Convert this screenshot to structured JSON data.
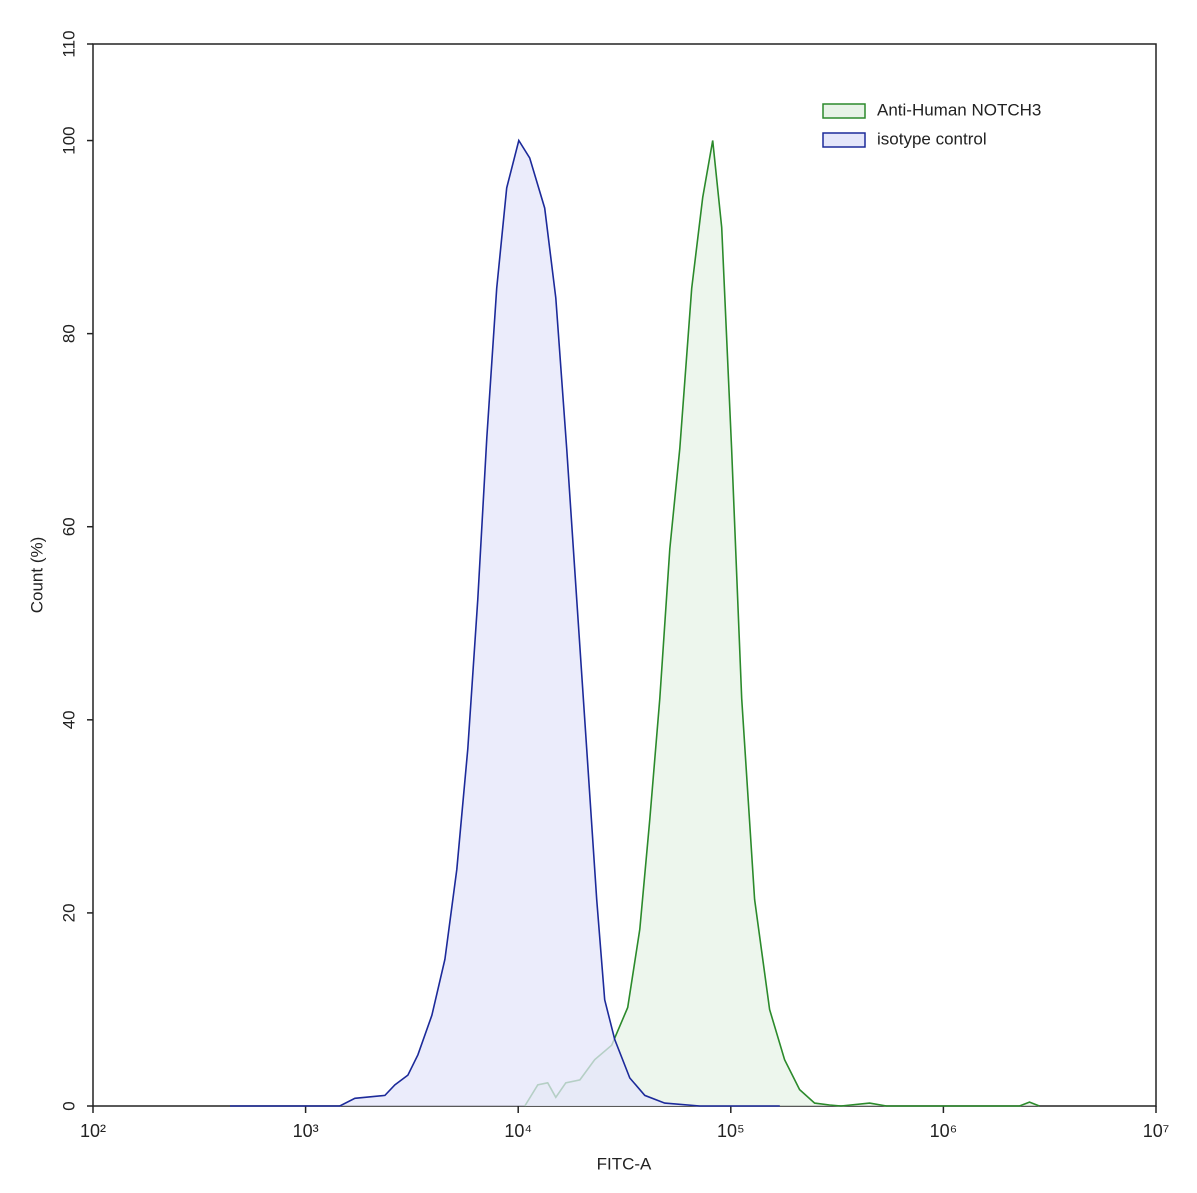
{
  "chart_data": {
    "type": "area",
    "x_label": "FITC-A",
    "y_label": "Count (%)",
    "xlim": [
      100,
      10000000
    ],
    "x_log": true,
    "xticks": [
      {
        "value": 100,
        "label": "10²"
      },
      {
        "value": 1000,
        "label": "10³"
      },
      {
        "value": 10000,
        "label": "10⁴"
      },
      {
        "value": 100000,
        "label": "10⁵"
      },
      {
        "value": 1000000,
        "label": "10⁶"
      },
      {
        "value": 10000000,
        "label": "10⁷"
      }
    ],
    "ylim": [
      0,
      110
    ],
    "yticks": [
      0,
      20,
      40,
      60,
      80,
      100,
      110
    ],
    "legend": "top-right",
    "series": [
      {
        "name": "Anti-Human NOTCH3",
        "color": "#2b8a2b",
        "fill": "#e7f3e7",
        "x": [
          10740,
          12360,
          13770,
          15020,
          16750,
          19500,
          22910,
          27540,
          32730,
          37320,
          41590,
          46340,
          51640,
          57540,
          65500,
          73790,
          82200,
          90600,
          100900,
          112500,
          129400,
          152300,
          179000,
          210700,
          247800,
          291700,
          330000,
          449800,
          540000,
          2280000,
          2540000,
          2830000
        ],
        "values": [
          0,
          2.2,
          2.4,
          0.9,
          2.4,
          2.7,
          4.8,
          6.3,
          10.2,
          18.3,
          29.7,
          42.2,
          57.7,
          68.1,
          84.7,
          94.1,
          100,
          91,
          68.1,
          42.2,
          21.4,
          10,
          4.8,
          1.7,
          0.3,
          0.1,
          0,
          0.3,
          0,
          0,
          0.4,
          0
        ]
      },
      {
        "name": "isotype control",
        "color": "#1c2a9a",
        "fill": "#e4e6fa",
        "x": [
          441,
          1449,
          1706,
          2361,
          2630,
          3027,
          3373,
          3926,
          4519,
          5143,
          5794,
          6457,
          7115,
          7925,
          8832,
          10060,
          11330,
          13330,
          15020,
          16910,
          18840,
          20990,
          23390,
          25520,
          28430,
          33480,
          39380,
          48880,
          71450,
          170000
        ],
        "values": [
          0,
          0,
          0.8,
          1.1,
          2.2,
          3.2,
          5.3,
          9.4,
          15.2,
          24.5,
          37,
          52.5,
          69.2,
          84.7,
          95.1,
          100,
          98.2,
          93,
          83.7,
          68.1,
          52.5,
          37,
          21.4,
          11,
          6.9,
          2.9,
          1.1,
          0.3,
          0,
          0
        ]
      }
    ]
  }
}
